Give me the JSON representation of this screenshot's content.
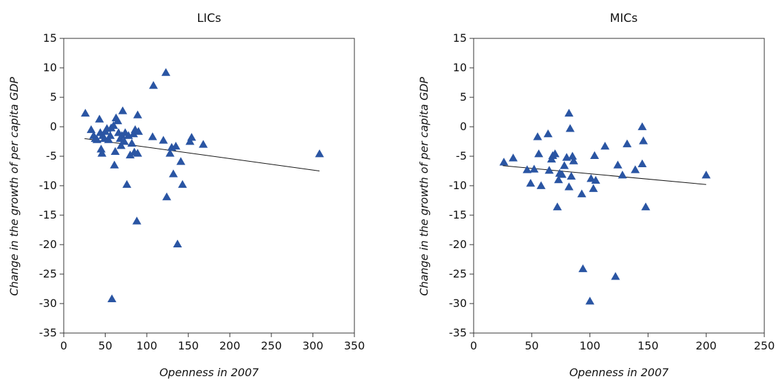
{
  "chart_data": [
    {
      "type": "scatter",
      "title": "LICs",
      "xlabel": "Openness in 2007",
      "ylabel_parts": [
        "Change in the growth of ",
        "per capita",
        " GDP"
      ],
      "xlim": [
        0,
        350
      ],
      "ylim": [
        -35,
        15
      ],
      "xticks": [
        0,
        50,
        100,
        150,
        200,
        250,
        300,
        350
      ],
      "yticks": [
        15,
        10,
        5,
        0,
        -5,
        -10,
        -15,
        -20,
        -25,
        -30,
        -35
      ],
      "marker": "triangle",
      "marker_color": "#2a55a3",
      "trendline": {
        "x": [
          25,
          308
        ],
        "y": [
          -2.0,
          -7.5
        ]
      },
      "points": [
        [
          26,
          2.3
        ],
        [
          33,
          -0.5
        ],
        [
          36,
          -1.5
        ],
        [
          38,
          -2.0
        ],
        [
          40,
          -2.2
        ],
        [
          43,
          1.3
        ],
        [
          44,
          -1.0
        ],
        [
          45,
          -3.8
        ],
        [
          46,
          -4.5
        ],
        [
          47,
          -1.5
        ],
        [
          49,
          -2.0
        ],
        [
          50,
          -0.8
        ],
        [
          52,
          -0.3
        ],
        [
          54,
          -2.2
        ],
        [
          56,
          -1.5
        ],
        [
          57,
          -0.2
        ],
        [
          58,
          -29.2
        ],
        [
          60,
          0.2
        ],
        [
          61,
          -6.5
        ],
        [
          62,
          -4.2
        ],
        [
          63,
          1.5
        ],
        [
          65,
          1.0
        ],
        [
          66,
          -1.0
        ],
        [
          68,
          -2.0
        ],
        [
          69,
          -3.2
        ],
        [
          70,
          -1.5
        ],
        [
          71,
          2.7
        ],
        [
          73,
          -2.5
        ],
        [
          74,
          -1.0
        ],
        [
          76,
          -9.8
        ],
        [
          78,
          -1.5
        ],
        [
          80,
          -4.8
        ],
        [
          82,
          -2.8
        ],
        [
          84,
          -1.2
        ],
        [
          85,
          -4.3
        ],
        [
          86,
          -0.5
        ],
        [
          88,
          -16.0
        ],
        [
          89,
          2.0
        ],
        [
          89,
          -4.5
        ],
        [
          90,
          -0.8
        ],
        [
          107,
          -1.7
        ],
        [
          108,
          7.0
        ],
        [
          120,
          -2.3
        ],
        [
          123,
          9.2
        ],
        [
          124,
          -11.9
        ],
        [
          128,
          -4.5
        ],
        [
          130,
          -3.5
        ],
        [
          132,
          -8.0
        ],
        [
          135,
          -3.3
        ],
        [
          137,
          -19.9
        ],
        [
          141,
          -5.9
        ],
        [
          143,
          -9.8
        ],
        [
          152,
          -2.5
        ],
        [
          154,
          -1.8
        ],
        [
          168,
          -3.0
        ],
        [
          308,
          -4.6
        ]
      ]
    },
    {
      "type": "scatter",
      "title": "MICs",
      "xlabel": "Openness in 2007",
      "ylabel_parts": [
        "Change in the growth of ",
        "per capita",
        " GDP"
      ],
      "xlim": [
        0,
        250
      ],
      "ylim": [
        -35,
        15
      ],
      "xticks": [
        0,
        50,
        100,
        150,
        200,
        250
      ],
      "yticks": [
        15,
        10,
        5,
        0,
        -5,
        -10,
        -15,
        -20,
        -25,
        -30,
        -35
      ],
      "marker": "triangle",
      "marker_color": "#2a55a3",
      "trendline": {
        "x": [
          25,
          200
        ],
        "y": [
          -6.6,
          -9.8
        ]
      },
      "points": [
        [
          26,
          -6.0
        ],
        [
          34,
          -5.3
        ],
        [
          46,
          -7.3
        ],
        [
          49,
          -9.6
        ],
        [
          52,
          -7.2
        ],
        [
          55,
          -1.7
        ],
        [
          56,
          -4.6
        ],
        [
          58,
          -10.0
        ],
        [
          64,
          -1.2
        ],
        [
          65,
          -7.4
        ],
        [
          67,
          -5.5
        ],
        [
          68,
          -4.9
        ],
        [
          70,
          -4.6
        ],
        [
          72,
          -13.6
        ],
        [
          73,
          -9.0
        ],
        [
          74,
          -7.9
        ],
        [
          76,
          -8.1
        ],
        [
          78,
          -6.6
        ],
        [
          80,
          -5.2
        ],
        [
          82,
          2.3
        ],
        [
          82,
          -10.2
        ],
        [
          83,
          -0.3
        ],
        [
          84,
          -8.4
        ],
        [
          85,
          -5.0
        ],
        [
          86,
          -5.8
        ],
        [
          93,
          -11.4
        ],
        [
          94,
          -24.1
        ],
        [
          100,
          -29.6
        ],
        [
          101,
          -8.8
        ],
        [
          103,
          -10.5
        ],
        [
          104,
          -4.9
        ],
        [
          105,
          -9.1
        ],
        [
          113,
          -3.3
        ],
        [
          122,
          -25.4
        ],
        [
          124,
          -6.5
        ],
        [
          128,
          -8.2
        ],
        [
          132,
          -2.9
        ],
        [
          139,
          -7.3
        ],
        [
          145,
          -6.3
        ],
        [
          145,
          0.0
        ],
        [
          146,
          -2.4
        ],
        [
          148,
          -13.6
        ],
        [
          200,
          -8.2
        ]
      ]
    }
  ]
}
